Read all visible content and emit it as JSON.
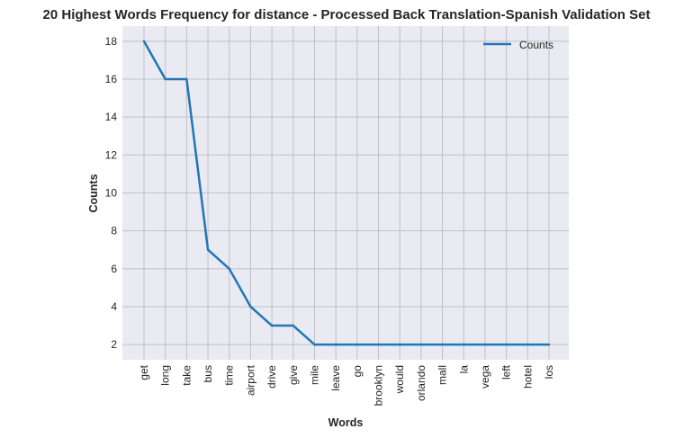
{
  "chart_data": {
    "type": "line",
    "title": "20 Highest Words Frequency for distance - Processed Back Translation-Spanish Validation Set",
    "xlabel": "Words",
    "ylabel": "Counts",
    "categories": [
      "get",
      "long",
      "take",
      "bus",
      "time",
      "airport",
      "drive",
      "give",
      "mile",
      "leave",
      "go",
      "brooklyn",
      "would",
      "orlando",
      "mall",
      "la",
      "vega",
      "left",
      "hotel",
      "los"
    ],
    "series": [
      {
        "name": "Counts",
        "values": [
          18,
          16,
          16,
          7,
          6,
          4,
          3,
          3,
          2,
          2,
          2,
          2,
          2,
          2,
          2,
          2,
          2,
          2,
          2,
          2
        ],
        "color": "#1f77b4"
      }
    ],
    "yticks": [
      2,
      4,
      6,
      8,
      10,
      12,
      14,
      16,
      18
    ],
    "ylim": [
      1.2,
      18.8
    ],
    "grid": true,
    "legend_position": "top-right",
    "colors": {
      "plot_background": "#eaeaf2",
      "grid": "#c0c0c4",
      "line": "#1f77b4",
      "text": "#262626"
    }
  }
}
